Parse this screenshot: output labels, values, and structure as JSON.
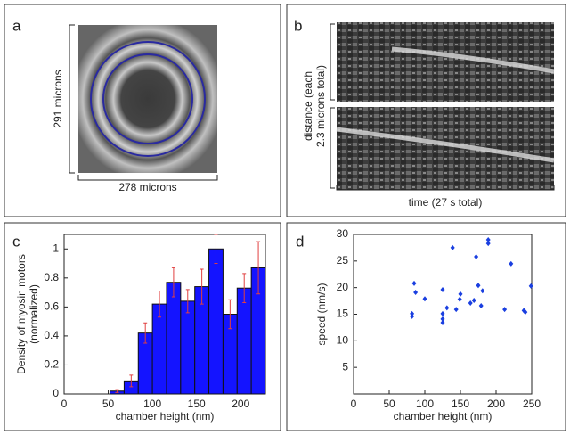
{
  "panels": {
    "a": {
      "label": "a",
      "height_label": "291 microns",
      "width_label": "278 microns"
    },
    "b": {
      "label": "b",
      "y_label": [
        "distance (each",
        "2.3 microns total)"
      ],
      "x_label": "time (27 s total)"
    }
  },
  "chart_data": [
    {
      "type": "histogram",
      "panel_label": "c",
      "xlabel": "chamber height (nm)",
      "ylabel": [
        "Density of myosin motors",
        "(normalized)"
      ],
      "bins": [
        52,
        68,
        84,
        100,
        116,
        132,
        148,
        164,
        180,
        196,
        212,
        228
      ],
      "values": [
        0.02,
        0.09,
        0.42,
        0.62,
        0.77,
        0.64,
        0.74,
        1.0,
        0.55,
        0.73,
        0.87
      ],
      "errors": [
        0.01,
        0.04,
        0.07,
        0.09,
        0.1,
        0.08,
        0.12,
        0.1,
        0.1,
        0.1,
        0.18
      ],
      "color": "#1414ff",
      "error_color": "#e04040",
      "xlim": [
        0,
        228
      ],
      "ylim": [
        0,
        1.1
      ],
      "xticks": [
        0,
        50,
        100,
        150,
        200
      ],
      "yticks": [
        0,
        0.2,
        0.4,
        0.6,
        0.8,
        1
      ]
    },
    {
      "type": "scatter",
      "panel_label": "d",
      "xlabel": "chamber height (nm)",
      "ylabel": "speed (nm/s)",
      "x": [
        82,
        82,
        85,
        87,
        100,
        125,
        125,
        125,
        125,
        131,
        139,
        144,
        149,
        150,
        164,
        169,
        172,
        175,
        179,
        181,
        189,
        189,
        212,
        221,
        239,
        241,
        249
      ],
      "values": [
        14.6,
        15.1,
        20.8,
        19.1,
        17.9,
        15.1,
        14.1,
        13.4,
        19.6,
        16.2,
        27.5,
        15.9,
        17.8,
        18.8,
        17.1,
        17.6,
        25.8,
        20.4,
        16.6,
        19.4,
        29.0,
        28.3,
        15.9,
        24.5,
        15.7,
        15.4,
        20.3
      ],
      "color": "#1a3fe0",
      "xlim": [
        0,
        250
      ],
      "ylim": [
        0,
        30
      ],
      "xticks": [
        0,
        50,
        100,
        150,
        200,
        250
      ],
      "yticks": [
        5,
        10,
        15,
        20,
        25,
        30
      ]
    }
  ]
}
